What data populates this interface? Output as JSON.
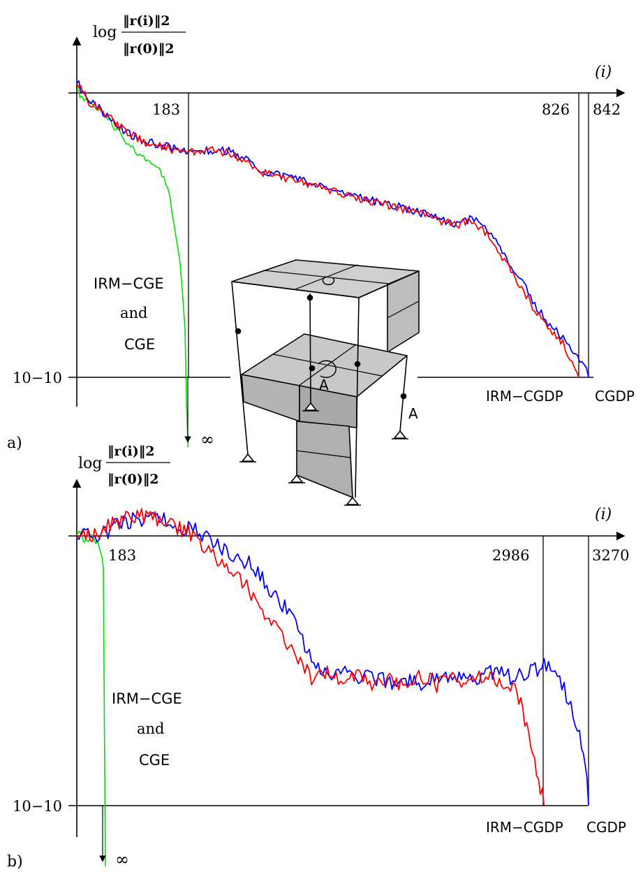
{
  "chart_data": [
    {
      "panel_label": "a)",
      "type": "line",
      "y_axis_label": {
        "prefix": "log",
        "numerator": "‖r(i)‖2",
        "denominator": "‖r(0)‖2"
      },
      "x_axis_label": "(i)",
      "y_tick_label": "10−10",
      "x_ticks": [
        183,
        826,
        842
      ],
      "xlim": [
        0,
        900
      ],
      "ylim": [
        -11,
        0.5
      ],
      "annotations": {
        "green_label": [
          "IRM−CGE",
          "and",
          "CGE"
        ],
        "infinity": "∞",
        "irm_dp_label": "IRM−CGDP",
        "cg_dp_label": "CGDP"
      },
      "series": [
        {
          "color": "#00e000",
          "end_x": 183,
          "points": [
            [
              0,
              0.4
            ],
            [
              5,
              -0.1
            ],
            [
              15,
              -0.25
            ],
            [
              25,
              -0.45
            ],
            [
              35,
              -0.55
            ],
            [
              45,
              -0.7
            ],
            [
              55,
              -1.0
            ],
            [
              70,
              -1.4
            ],
            [
              85,
              -1.8
            ],
            [
              100,
              -2.1
            ],
            [
              110,
              -2.3
            ],
            [
              120,
              -2.45
            ],
            [
              130,
              -2.55
            ],
            [
              140,
              -2.85
            ],
            [
              150,
              -3.4
            ],
            [
              160,
              -4.5
            ],
            [
              170,
              -6.0
            ],
            [
              178,
              -8.3
            ],
            [
              183,
              -13.5
            ]
          ]
        },
        {
          "color": "#0000ff",
          "end_x": 842,
          "points": [
            [
              0,
              0.4
            ],
            [
              20,
              -0.3
            ],
            [
              40,
              -0.6
            ],
            [
              60,
              -1.05
            ],
            [
              80,
              -1.35
            ],
            [
              100,
              -1.6
            ],
            [
              120,
              -1.75
            ],
            [
              150,
              -1.9
            ],
            [
              183,
              -2.05
            ],
            [
              200,
              -2.0
            ],
            [
              250,
              -2.05
            ],
            [
              275,
              -2.3
            ],
            [
              300,
              -2.7
            ],
            [
              350,
              -3.0
            ],
            [
              400,
              -3.25
            ],
            [
              450,
              -3.6
            ],
            [
              500,
              -3.85
            ],
            [
              550,
              -4.1
            ],
            [
              600,
              -4.45
            ],
            [
              625,
              -4.6
            ],
            [
              650,
              -4.4
            ],
            [
              675,
              -4.8
            ],
            [
              700,
              -5.6
            ],
            [
              725,
              -6.4
            ],
            [
              750,
              -7.3
            ],
            [
              775,
              -8.1
            ],
            [
              800,
              -8.6
            ],
            [
              820,
              -9.2
            ],
            [
              835,
              -9.6
            ],
            [
              842,
              -10.0
            ]
          ]
        },
        {
          "color": "#ff0000",
          "end_x": 826,
          "points": [
            [
              0,
              0.4
            ],
            [
              20,
              -0.3
            ],
            [
              40,
              -0.6
            ],
            [
              60,
              -1.0
            ],
            [
              80,
              -1.35
            ],
            [
              100,
              -1.6
            ],
            [
              120,
              -1.8
            ],
            [
              150,
              -1.95
            ],
            [
              183,
              -2.1
            ],
            [
              200,
              -2.0
            ],
            [
              250,
              -2.1
            ],
            [
              275,
              -2.35
            ],
            [
              300,
              -2.75
            ],
            [
              350,
              -3.05
            ],
            [
              400,
              -3.3
            ],
            [
              450,
              -3.65
            ],
            [
              500,
              -3.9
            ],
            [
              550,
              -4.15
            ],
            [
              600,
              -4.5
            ],
            [
              625,
              -4.65
            ],
            [
              650,
              -4.45
            ],
            [
              675,
              -4.95
            ],
            [
              700,
              -5.75
            ],
            [
              725,
              -6.6
            ],
            [
              750,
              -7.5
            ],
            [
              775,
              -8.3
            ],
            [
              800,
              -8.8
            ],
            [
              815,
              -9.5
            ],
            [
              826,
              -10.0
            ]
          ]
        }
      ]
    },
    {
      "panel_label": "b)",
      "type": "line",
      "y_axis_label": {
        "prefix": "log",
        "numerator": "‖r(i)‖2",
        "denominator": "‖r(0)‖2"
      },
      "x_axis_label": "(i)",
      "y_tick_label": "10−10",
      "x_ticks": [
        183,
        2986,
        3270
      ],
      "xlim": [
        0,
        3500
      ],
      "ylim": [
        -11,
        0.5
      ],
      "annotations": {
        "green_label": [
          "IRM−CGE",
          "and",
          "CGE"
        ],
        "infinity": "∞",
        "irm_dp_label": "IRM−CGDP",
        "cg_dp_label": "CGDP"
      },
      "series": [
        {
          "color": "#00e000",
          "end_x": 183,
          "points": [
            [
              0,
              0.1
            ],
            [
              30,
              -0.05
            ],
            [
              60,
              -0.15
            ],
            [
              90,
              -0.1
            ],
            [
              120,
              -0.25
            ],
            [
              150,
              -0.5
            ],
            [
              170,
              -1.2
            ],
            [
              183,
              -13.5
            ]
          ]
        },
        {
          "color": "#0000ff",
          "end_x": 3270,
          "points": [
            [
              0,
              0.1
            ],
            [
              100,
              -0.1
            ],
            [
              200,
              0.2
            ],
            [
              300,
              0.5
            ],
            [
              400,
              0.6
            ],
            [
              500,
              0.7
            ],
            [
              600,
              0.55
            ],
            [
              700,
              0.3
            ],
            [
              800,
              0.1
            ],
            [
              900,
              -0.4
            ],
            [
              1000,
              -0.8
            ],
            [
              1100,
              -1.0
            ],
            [
              1200,
              -1.7
            ],
            [
              1300,
              -2.4
            ],
            [
              1400,
              -3.3
            ],
            [
              1500,
              -4.5
            ],
            [
              1600,
              -5.3
            ],
            [
              1700,
              -5.0
            ],
            [
              1800,
              -5.4
            ],
            [
              1900,
              -5.2
            ],
            [
              2000,
              -5.5
            ],
            [
              2100,
              -5.3
            ],
            [
              2200,
              -5.6
            ],
            [
              2300,
              -5.2
            ],
            [
              2400,
              -5.4
            ],
            [
              2500,
              -5.3
            ],
            [
              2600,
              -5.2
            ],
            [
              2700,
              -5.0
            ],
            [
              2800,
              -5.3
            ],
            [
              2900,
              -5.0
            ],
            [
              3000,
              -4.8
            ],
            [
              3100,
              -5.4
            ],
            [
              3200,
              -7.0
            ],
            [
              3250,
              -8.3
            ],
            [
              3270,
              -10.0
            ]
          ]
        },
        {
          "color": "#ff0000",
          "end_x": 2986,
          "points": [
            [
              0,
              0.1
            ],
            [
              100,
              0.0
            ],
            [
              200,
              0.35
            ],
            [
              300,
              0.6
            ],
            [
              400,
              0.75
            ],
            [
              500,
              0.6
            ],
            [
              600,
              0.4
            ],
            [
              700,
              0.2
            ],
            [
              800,
              -0.3
            ],
            [
              900,
              -0.9
            ],
            [
              1000,
              -1.4
            ],
            [
              1100,
              -2.0
            ],
            [
              1200,
              -2.8
            ],
            [
              1300,
              -3.6
            ],
            [
              1400,
              -4.5
            ],
            [
              1500,
              -5.3
            ],
            [
              1600,
              -5.1
            ],
            [
              1700,
              -5.5
            ],
            [
              1800,
              -5.2
            ],
            [
              1900,
              -5.6
            ],
            [
              2000,
              -5.4
            ],
            [
              2100,
              -5.5
            ],
            [
              2200,
              -5.2
            ],
            [
              2300,
              -5.5
            ],
            [
              2400,
              -5.3
            ],
            [
              2500,
              -5.4
            ],
            [
              2600,
              -5.2
            ],
            [
              2700,
              -5.3
            ],
            [
              2800,
              -5.6
            ],
            [
              2850,
              -6.5
            ],
            [
              2900,
              -7.7
            ],
            [
              2950,
              -8.9
            ],
            [
              2986,
              -10.0
            ]
          ]
        }
      ]
    }
  ],
  "inset": {
    "support_label_1": "A",
    "support_label_2": "A"
  }
}
